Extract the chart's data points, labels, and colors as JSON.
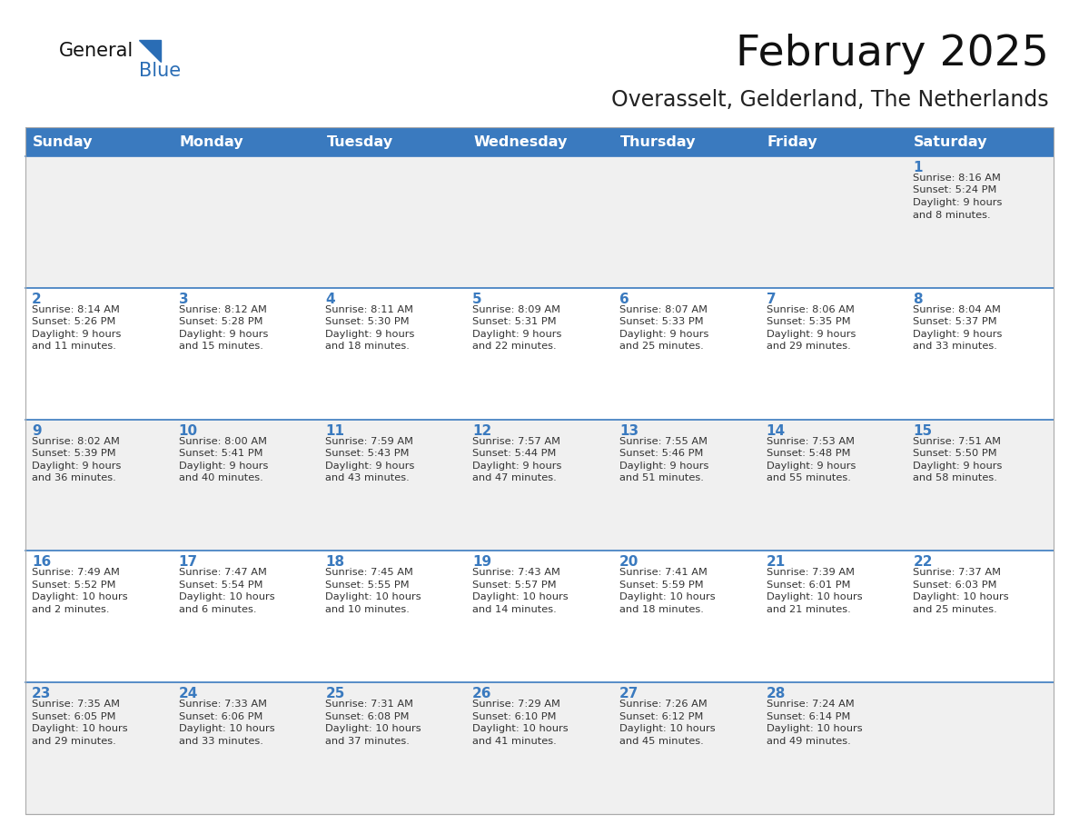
{
  "title": "February 2025",
  "subtitle": "Overasselt, Gelderland, The Netherlands",
  "days_of_week": [
    "Sunday",
    "Monday",
    "Tuesday",
    "Wednesday",
    "Thursday",
    "Friday",
    "Saturday"
  ],
  "header_bg_color": "#3a7abf",
  "header_text_color": "#ffffff",
  "row_bg_odd": "#f0f0f0",
  "row_bg_even": "#ffffff",
  "day_number_color": "#3a7abf",
  "text_color": "#333333",
  "line_color": "#3a7abf",
  "title_color": "#111111",
  "subtitle_color": "#222222",
  "logo_general_color": "#111111",
  "logo_blue_color": "#2a6db5",
  "calendar_data": [
    [
      null,
      null,
      null,
      null,
      null,
      null,
      {
        "day": 1,
        "sunrise": "8:16 AM",
        "sunset": "5:24 PM",
        "daylight": "9 hours and 8 minutes."
      }
    ],
    [
      {
        "day": 2,
        "sunrise": "8:14 AM",
        "sunset": "5:26 PM",
        "daylight": "9 hours and 11 minutes."
      },
      {
        "day": 3,
        "sunrise": "8:12 AM",
        "sunset": "5:28 PM",
        "daylight": "9 hours and 15 minutes."
      },
      {
        "day": 4,
        "sunrise": "8:11 AM",
        "sunset": "5:30 PM",
        "daylight": "9 hours and 18 minutes."
      },
      {
        "day": 5,
        "sunrise": "8:09 AM",
        "sunset": "5:31 PM",
        "daylight": "9 hours and 22 minutes."
      },
      {
        "day": 6,
        "sunrise": "8:07 AM",
        "sunset": "5:33 PM",
        "daylight": "9 hours and 25 minutes."
      },
      {
        "day": 7,
        "sunrise": "8:06 AM",
        "sunset": "5:35 PM",
        "daylight": "9 hours and 29 minutes."
      },
      {
        "day": 8,
        "sunrise": "8:04 AM",
        "sunset": "5:37 PM",
        "daylight": "9 hours and 33 minutes."
      }
    ],
    [
      {
        "day": 9,
        "sunrise": "8:02 AM",
        "sunset": "5:39 PM",
        "daylight": "9 hours and 36 minutes."
      },
      {
        "day": 10,
        "sunrise": "8:00 AM",
        "sunset": "5:41 PM",
        "daylight": "9 hours and 40 minutes."
      },
      {
        "day": 11,
        "sunrise": "7:59 AM",
        "sunset": "5:43 PM",
        "daylight": "9 hours and 43 minutes."
      },
      {
        "day": 12,
        "sunrise": "7:57 AM",
        "sunset": "5:44 PM",
        "daylight": "9 hours and 47 minutes."
      },
      {
        "day": 13,
        "sunrise": "7:55 AM",
        "sunset": "5:46 PM",
        "daylight": "9 hours and 51 minutes."
      },
      {
        "day": 14,
        "sunrise": "7:53 AM",
        "sunset": "5:48 PM",
        "daylight": "9 hours and 55 minutes."
      },
      {
        "day": 15,
        "sunrise": "7:51 AM",
        "sunset": "5:50 PM",
        "daylight": "9 hours and 58 minutes."
      }
    ],
    [
      {
        "day": 16,
        "sunrise": "7:49 AM",
        "sunset": "5:52 PM",
        "daylight": "10 hours and 2 minutes."
      },
      {
        "day": 17,
        "sunrise": "7:47 AM",
        "sunset": "5:54 PM",
        "daylight": "10 hours and 6 minutes."
      },
      {
        "day": 18,
        "sunrise": "7:45 AM",
        "sunset": "5:55 PM",
        "daylight": "10 hours and 10 minutes."
      },
      {
        "day": 19,
        "sunrise": "7:43 AM",
        "sunset": "5:57 PM",
        "daylight": "10 hours and 14 minutes."
      },
      {
        "day": 20,
        "sunrise": "7:41 AM",
        "sunset": "5:59 PM",
        "daylight": "10 hours and 18 minutes."
      },
      {
        "day": 21,
        "sunrise": "7:39 AM",
        "sunset": "6:01 PM",
        "daylight": "10 hours and 21 minutes."
      },
      {
        "day": 22,
        "sunrise": "7:37 AM",
        "sunset": "6:03 PM",
        "daylight": "10 hours and 25 minutes."
      }
    ],
    [
      {
        "day": 23,
        "sunrise": "7:35 AM",
        "sunset": "6:05 PM",
        "daylight": "10 hours and 29 minutes."
      },
      {
        "day": 24,
        "sunrise": "7:33 AM",
        "sunset": "6:06 PM",
        "daylight": "10 hours and 33 minutes."
      },
      {
        "day": 25,
        "sunrise": "7:31 AM",
        "sunset": "6:08 PM",
        "daylight": "10 hours and 37 minutes."
      },
      {
        "day": 26,
        "sunrise": "7:29 AM",
        "sunset": "6:10 PM",
        "daylight": "10 hours and 41 minutes."
      },
      {
        "day": 27,
        "sunrise": "7:26 AM",
        "sunset": "6:12 PM",
        "daylight": "10 hours and 45 minutes."
      },
      {
        "day": 28,
        "sunrise": "7:24 AM",
        "sunset": "6:14 PM",
        "daylight": "10 hours and 49 minutes."
      },
      null
    ]
  ]
}
